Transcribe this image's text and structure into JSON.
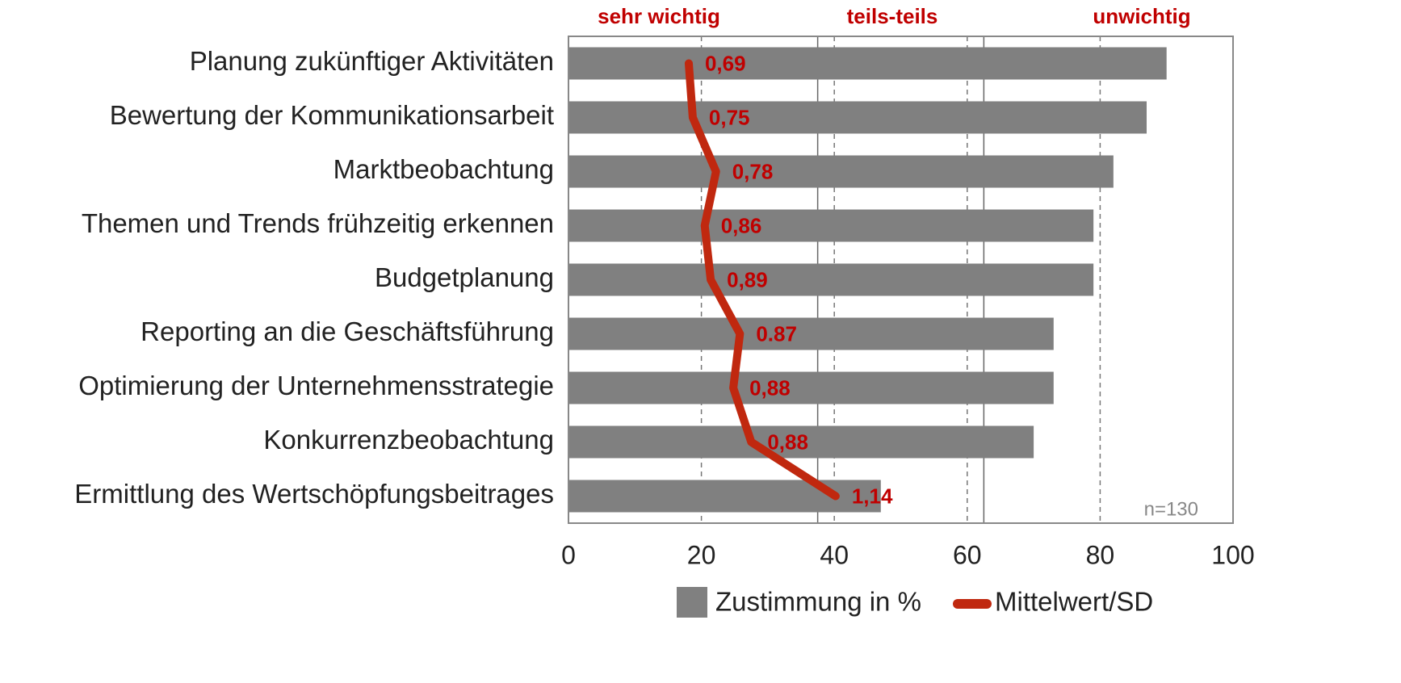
{
  "chart_data": {
    "type": "bar",
    "orientation": "horizontal",
    "categories": [
      "Planung zukünftiger Aktivitäten",
      "Bewertung der Kommunikationsarbeit",
      "Marktbeobachtung",
      "Themen und Trends frühzeitig erkennen",
      "Budgetplanung",
      "Reporting an die Geschäftsführung",
      "Optimierung der Unternehmensstrategie",
      "Konkurrenzbeobachtung",
      "Ermittlung des Wertschöpfungsbeitrages"
    ],
    "series": [
      {
        "name": "Zustimmung in %",
        "type": "bar",
        "color": "#808080",
        "values": [
          90,
          87,
          82,
          79,
          79,
          73,
          73,
          70,
          47
        ]
      },
      {
        "name": "Mittelwert/SD",
        "type": "line",
        "color": "#c0280f",
        "values": [
          18.1,
          18.7,
          22.2,
          20.5,
          21.4,
          25.8,
          24.8,
          27.5,
          40.2
        ],
        "point_labels": [
          "0,69",
          "0,75",
          "0,78",
          "0,86",
          "0,89",
          "0.87",
          "0,88",
          "0,88",
          "1,14"
        ]
      }
    ],
    "xlim": [
      0,
      100
    ],
    "xticks": [
      0,
      20,
      40,
      60,
      80,
      100
    ],
    "grid": true,
    "reference_lines": [
      37.5,
      62.5
    ],
    "scale_labels": [
      "sehr wichtig",
      "teils-teils",
      "unwichtig"
    ],
    "annotation": "n=130",
    "legend": "bottom"
  }
}
